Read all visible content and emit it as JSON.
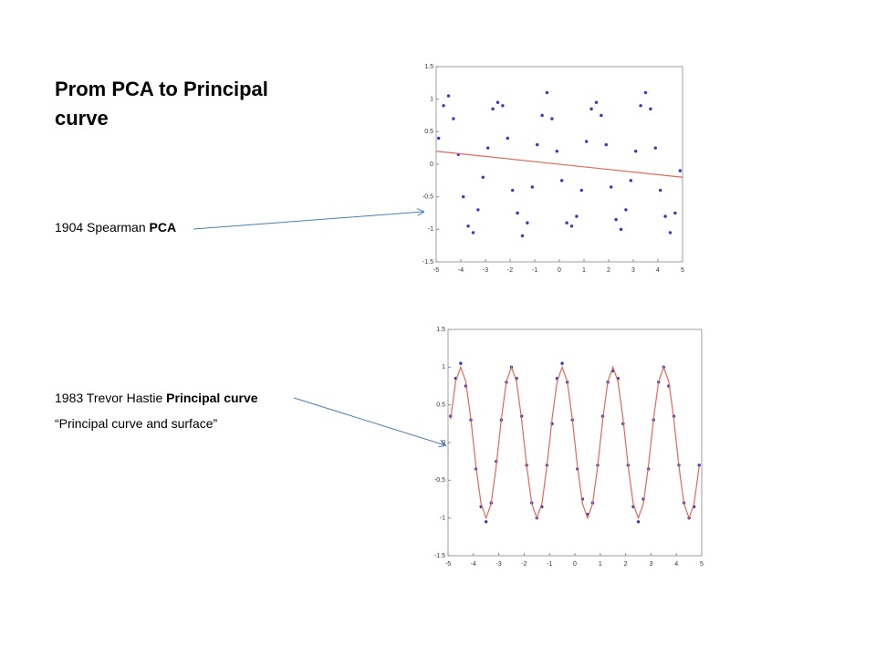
{
  "slide": {
    "title": "Prom PCA to Principal curve",
    "lines": [
      [
        {
          "text": "1904 Spearman "
        },
        {
          "text": "PCA",
          "bold": true
        }
      ],
      [
        {
          "text": "1983 Trevor Hastie "
        },
        {
          "text": "Principal curve",
          "bold": true
        }
      ],
      [
        {
          "text": "“Principal curve and surface”"
        }
      ]
    ]
  },
  "chart_data": [
    {
      "type": "scatter",
      "xlim": [
        -5,
        5
      ],
      "ylim": [
        -1.5,
        1.5
      ],
      "xticks": [
        -5,
        -4,
        -3,
        -2,
        -1,
        0,
        1,
        2,
        3,
        4,
        5
      ],
      "yticks": [
        -1.5,
        -1,
        -0.5,
        0,
        0.5,
        1,
        1.5
      ],
      "series": [
        {
          "mode": "markers",
          "color": "#3535c8",
          "x": [
            -4.9,
            -4.7,
            -4.5,
            -4.3,
            -4.1,
            -3.9,
            -3.7,
            -3.5,
            -3.3,
            -3.1,
            -2.9,
            -2.7,
            -2.5,
            -2.3,
            -2.1,
            -1.9,
            -1.7,
            -1.5,
            -1.3,
            -1.1,
            -0.9,
            -0.7,
            -0.5,
            -0.3,
            -0.1,
            0.1,
            0.3,
            0.5,
            0.7,
            0.9,
            1.1,
            1.3,
            1.5,
            1.7,
            1.9,
            2.1,
            2.3,
            2.5,
            2.7,
            2.9,
            3.1,
            3.3,
            3.5,
            3.7,
            3.9,
            4.1,
            4.3,
            4.5,
            4.7,
            4.9
          ],
          "values": [
            0.4,
            0.9,
            1.05,
            0.7,
            0.15,
            -0.5,
            -0.95,
            -1.05,
            -0.7,
            -0.2,
            0.25,
            0.85,
            0.95,
            0.9,
            0.4,
            -0.4,
            -0.75,
            -1.1,
            -0.9,
            -0.35,
            0.3,
            0.75,
            1.1,
            0.7,
            0.2,
            -0.25,
            -0.9,
            -0.95,
            -0.8,
            -0.4,
            0.35,
            0.85,
            0.95,
            0.75,
            0.3,
            -0.35,
            -0.85,
            -1.0,
            -0.7,
            -0.25,
            0.2,
            0.9,
            1.1,
            0.85,
            0.25,
            -0.4,
            -0.8,
            -1.05,
            -0.75,
            -0.1
          ]
        },
        {
          "mode": "line",
          "color": "#e06a5a",
          "x": [
            -5,
            5
          ],
          "values": [
            0.2,
            -0.2
          ]
        }
      ]
    },
    {
      "type": "scatter",
      "xlim": [
        -5,
        5
      ],
      "ylim": [
        -1.5,
        1.5
      ],
      "xticks": [
        -5,
        -4,
        -3,
        -2,
        -1,
        0,
        1,
        2,
        3,
        4,
        5
      ],
      "yticks": [
        -1.5,
        -1,
        -0.5,
        0,
        0.5,
        1,
        1.5
      ],
      "series": [
        {
          "mode": "markers",
          "color": "#3535c8",
          "x": [
            -4.9,
            -4.7,
            -4.5,
            -4.3,
            -4.1,
            -3.9,
            -3.7,
            -3.5,
            -3.3,
            -3.1,
            -2.9,
            -2.7,
            -2.5,
            -2.3,
            -2.1,
            -1.9,
            -1.7,
            -1.5,
            -1.3,
            -1.1,
            -0.9,
            -0.7,
            -0.5,
            -0.3,
            -0.1,
            0.1,
            0.3,
            0.5,
            0.7,
            0.9,
            1.1,
            1.3,
            1.5,
            1.7,
            1.9,
            2.1,
            2.3,
            2.5,
            2.7,
            2.9,
            3.1,
            3.3,
            3.5,
            3.7,
            3.9,
            4.1,
            4.3,
            4.5,
            4.7,
            4.9
          ],
          "values": [
            0.35,
            0.85,
            1.05,
            0.75,
            0.3,
            -0.35,
            -0.85,
            -1.05,
            -0.8,
            -0.25,
            0.3,
            0.8,
            1.0,
            0.85,
            0.35,
            -0.3,
            -0.8,
            -1.0,
            -0.85,
            -0.3,
            0.25,
            0.85,
            1.05,
            0.8,
            0.3,
            -0.35,
            -0.75,
            -0.95,
            -0.8,
            -0.3,
            0.35,
            0.8,
            0.95,
            0.85,
            0.25,
            -0.3,
            -0.85,
            -1.05,
            -0.75,
            -0.35,
            0.3,
            0.8,
            1.0,
            0.75,
            0.35,
            -0.3,
            -0.8,
            -1.0,
            -0.85,
            -0.3
          ]
        },
        {
          "mode": "line",
          "color": "#e06a5a",
          "x": [
            -4.9,
            -4.7,
            -4.5,
            -4.3,
            -4.1,
            -3.9,
            -3.7,
            -3.5,
            -3.3,
            -3.1,
            -2.9,
            -2.7,
            -2.5,
            -2.3,
            -2.1,
            -1.9,
            -1.7,
            -1.5,
            -1.3,
            -1.1,
            -0.9,
            -0.7,
            -0.5,
            -0.3,
            -0.1,
            0.1,
            0.3,
            0.5,
            0.7,
            0.9,
            1.1,
            1.3,
            1.5,
            1.7,
            1.9,
            2.1,
            2.3,
            2.5,
            2.7,
            2.9,
            3.1,
            3.3,
            3.5,
            3.7,
            3.9,
            4.1,
            4.3,
            4.5,
            4.7,
            4.9
          ],
          "values": [
            0.31,
            0.81,
            1,
            0.81,
            0.31,
            -0.31,
            -0.81,
            -1,
            -0.81,
            -0.31,
            0.31,
            0.81,
            1,
            0.81,
            0.31,
            -0.31,
            -0.81,
            -1,
            -0.81,
            -0.31,
            0.31,
            0.81,
            1,
            0.81,
            0.31,
            -0.31,
            -0.81,
            -1,
            -0.81,
            -0.31,
            0.31,
            0.81,
            1,
            0.81,
            0.31,
            -0.31,
            -0.81,
            -1,
            -0.81,
            -0.31,
            0.31,
            0.81,
            1,
            0.81,
            0.31,
            -0.31,
            -0.81,
            -1,
            -0.81,
            -0.31
          ]
        }
      ]
    }
  ]
}
